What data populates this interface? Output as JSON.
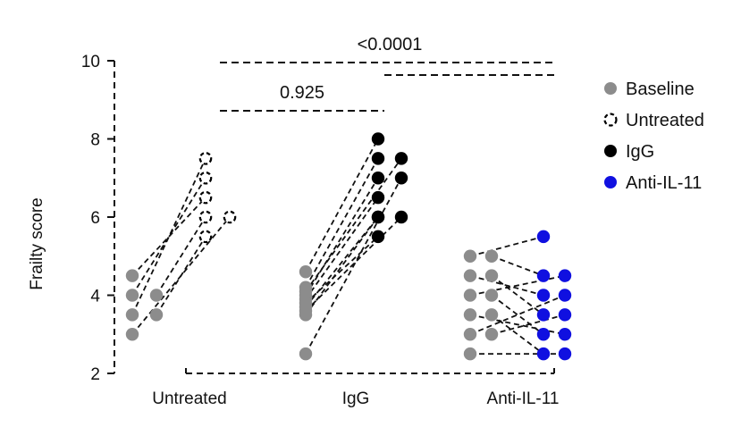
{
  "chart_data": {
    "type": "scatter",
    "subtype": "paired before-after dot plot",
    "ylabel": "Frailty score",
    "ylim": [
      2,
      10
    ],
    "yticks": [
      "2",
      "4",
      "6",
      "8",
      "10"
    ],
    "categories": [
      "Untreated",
      "IgG",
      "Anti-IL-11"
    ],
    "legend_position": "right",
    "grid": false,
    "legend": [
      {
        "name": "Baseline",
        "color": "#8c8c8c",
        "style": "filled"
      },
      {
        "name": "Untreated",
        "color": "#000000",
        "style": "dashed-outline"
      },
      {
        "name": "IgG",
        "color": "#000000",
        "style": "filled"
      },
      {
        "name": "Anti-IL-11",
        "color": "#1010e0",
        "style": "filled"
      }
    ],
    "groups": [
      {
        "category": "Untreated",
        "after_series": "Untreated",
        "pairs": [
          [
            4.5,
            6.5
          ],
          [
            4.0,
            7.0
          ],
          [
            4.0,
            6.0
          ],
          [
            3.5,
            7.5
          ],
          [
            3.5,
            5.5
          ],
          [
            3.0,
            6.0
          ]
        ]
      },
      {
        "category": "IgG",
        "after_series": "IgG",
        "pairs": [
          [
            4.6,
            8.0
          ],
          [
            4.2,
            7.5
          ],
          [
            4.1,
            7.5
          ],
          [
            4.0,
            7.0
          ],
          [
            3.9,
            6.5
          ],
          [
            3.7,
            6.0
          ],
          [
            3.6,
            6.0
          ],
          [
            3.5,
            6.0
          ],
          [
            3.8,
            5.5
          ],
          [
            2.5,
            7.0
          ]
        ]
      },
      {
        "category": "Anti-IL-11",
        "after_series": "Anti-IL-11",
        "pairs": [
          [
            5.0,
            5.5
          ],
          [
            5.0,
            4.5
          ],
          [
            4.5,
            4.0
          ],
          [
            4.5,
            3.5
          ],
          [
            4.0,
            4.5
          ],
          [
            4.0,
            3.0
          ],
          [
            3.5,
            3.0
          ],
          [
            3.5,
            2.5
          ],
          [
            3.0,
            4.0
          ],
          [
            3.0,
            3.5
          ],
          [
            2.5,
            2.5
          ]
        ]
      }
    ],
    "comparisons": [
      {
        "label": "0.925",
        "from": "Untreated",
        "to": "IgG"
      },
      {
        "label": "<0.0001",
        "from": "Untreated",
        "to": "Anti-IL-11"
      },
      {
        "label": "",
        "from": "IgG",
        "to": "Anti-IL-11"
      }
    ]
  }
}
